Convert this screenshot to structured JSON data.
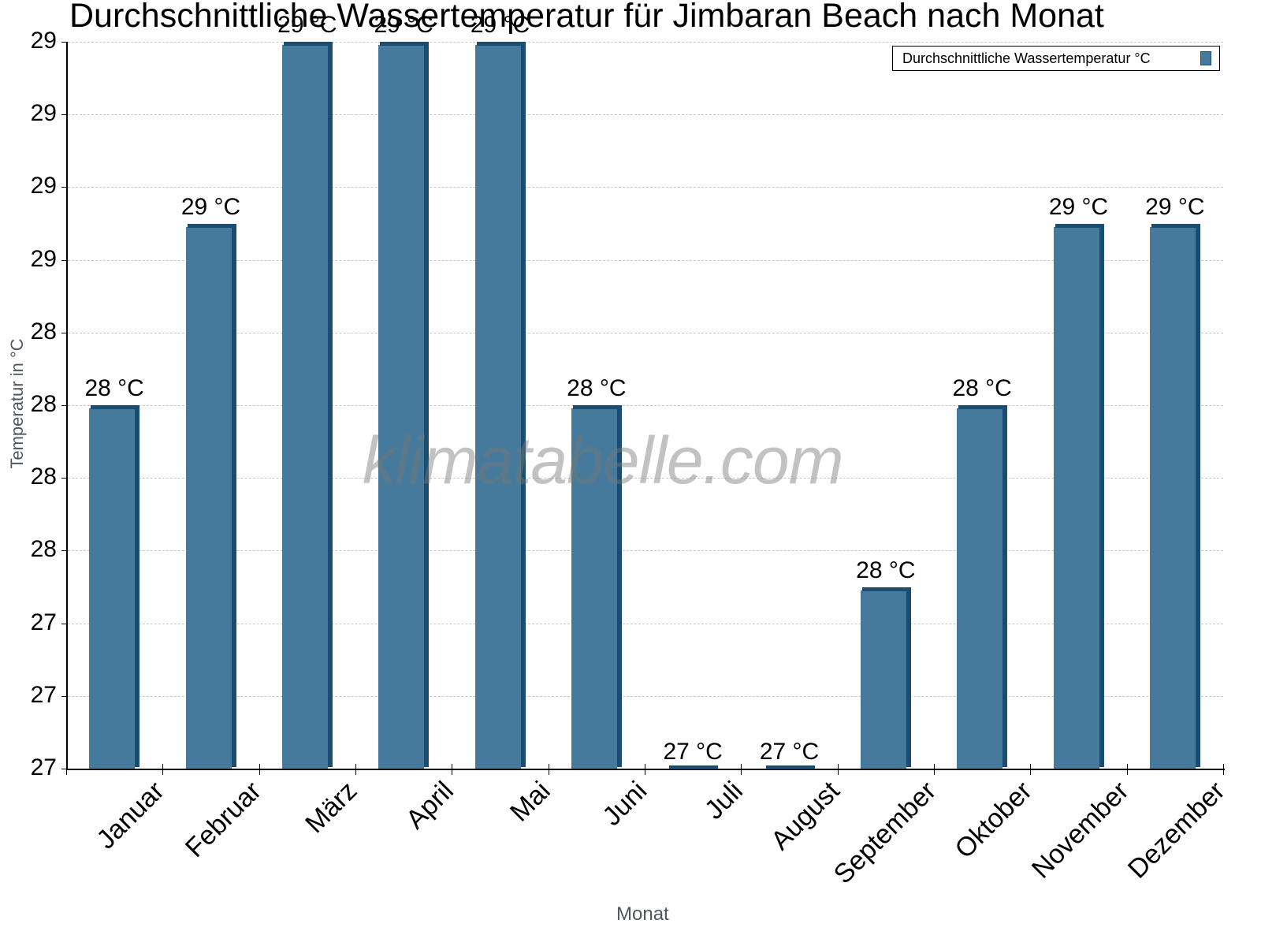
{
  "chart_data": {
    "type": "bar",
    "title": "Durchschnittliche Wassertemperatur für Jimbaran Beach nach Monat",
    "xlabel": "Monat",
    "ylabel": "Temperatur in °C",
    "categories": [
      "Januar",
      "Februar",
      "März",
      "April",
      "Mai",
      "Juni",
      "Juli",
      "August",
      "September",
      "Oktober",
      "November",
      "Dezember"
    ],
    "series": [
      {
        "name": "Durchschnittliche Wassertemperatur °C",
        "color": "#467a9c",
        "values": [
          28.1,
          28.65,
          29.2,
          29.2,
          29.2,
          28.1,
          27.0,
          27.0,
          27.55,
          28.1,
          28.65,
          28.65
        ],
        "data_labels": [
          "28 °C",
          "29 °C",
          "29 °C",
          "29 °C",
          "29 °C",
          "28 °C",
          "27 °C",
          "27 °C",
          "28 °C",
          "28 °C",
          "29 °C",
          "29 °C"
        ]
      }
    ],
    "ylim": [
      27.0,
      29.2
    ],
    "y_tick_labels": [
      "29",
      "29",
      "29",
      "29",
      "28",
      "28",
      "28",
      "28",
      "27",
      "27",
      "27"
    ],
    "grid": true,
    "legend_position": "top-right",
    "watermark": "klimatabelle.com"
  },
  "title": "Durchschnittliche Wassertemperatur für Jimbaran Beach nach Monat",
  "legend": {
    "label": "Durchschnittliche Wassertemperatur °C"
  },
  "axes": {
    "x_title": "Monat",
    "y_title": "Temperatur in °C"
  },
  "watermark": "klimatabelle.com"
}
